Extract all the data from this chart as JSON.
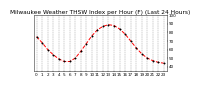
{
  "title": "Milwaukee Weather THSW Index per Hour (F) (Last 24 Hours)",
  "hours": [
    0,
    1,
    2,
    3,
    4,
    5,
    6,
    7,
    8,
    9,
    10,
    11,
    12,
    13,
    14,
    15,
    16,
    17,
    18,
    19,
    20,
    21,
    22,
    23
  ],
  "values": [
    75,
    68,
    60,
    54,
    49,
    46,
    46,
    50,
    58,
    67,
    76,
    83,
    87,
    89,
    88,
    84,
    78,
    70,
    62,
    55,
    50,
    47,
    45,
    44
  ],
  "line_color": "#ff0000",
  "marker_color": "#000000",
  "bg_color": "#ffffff",
  "plot_bg": "#ffffff",
  "grid_color": "#777777",
  "ylim": [
    35,
    100
  ],
  "yticks": [
    40,
    50,
    60,
    70,
    80,
    90,
    100
  ],
  "ytick_labels": [
    "40",
    "50",
    "60",
    "70",
    "80",
    "90",
    "100"
  ],
  "title_fontsize": 4.2,
  "tick_fontsize": 3.0,
  "linewidth": 0.7,
  "markersize": 1.0
}
